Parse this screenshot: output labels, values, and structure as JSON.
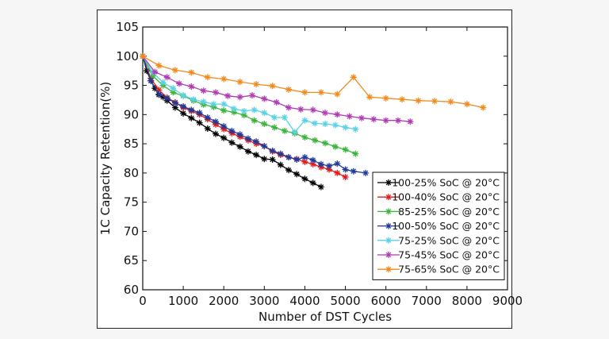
{
  "chart_data": {
    "type": "line",
    "title": "",
    "xlabel": "Number of DST Cycles",
    "ylabel": "1C Capacity Retention(%)",
    "xlim": [
      0,
      9000
    ],
    "ylim": [
      60,
      105
    ],
    "xticks": [
      0,
      1000,
      2000,
      3000,
      4000,
      5000,
      6000,
      7000,
      8000,
      9000
    ],
    "yticks": [
      60,
      65,
      70,
      75,
      80,
      85,
      90,
      95,
      100,
      105
    ],
    "grid": false,
    "legend_position": "bottom-right",
    "series": [
      {
        "name": "100-25% SoC @ 20°C",
        "color": "#000000",
        "x": [
          0,
          100,
          200,
          300,
          400,
          500,
          600,
          800,
          1000,
          1200,
          1400,
          1600,
          1800,
          2000,
          2200,
          2400,
          2600,
          2800,
          3000,
          3200,
          3400,
          3600,
          3800,
          4000,
          4200,
          4400
        ],
        "y": [
          100,
          97.5,
          95.8,
          94.5,
          93.4,
          93,
          92.4,
          91.2,
          90.2,
          89.4,
          88.6,
          87.6,
          86.7,
          86.0,
          85.2,
          84.5,
          83.7,
          83.1,
          82.4,
          82.3,
          81.4,
          80.5,
          79.8,
          79.0,
          78.3,
          77.6
        ]
      },
      {
        "name": "100-40% SoC @ 20°C",
        "color": "#e41a1c",
        "x": [
          0,
          200,
          400,
          600,
          800,
          1000,
          1200,
          1400,
          1600,
          1800,
          2000,
          2200,
          2400,
          2600,
          2800,
          3000,
          3200,
          3400,
          3600,
          3800,
          4000,
          4200,
          4400,
          4600,
          4800,
          5000
        ],
        "y": [
          100,
          96.2,
          94.2,
          92.9,
          92.1,
          91.2,
          90.6,
          90.0,
          89.2,
          88.3,
          87.5,
          86.8,
          86.2,
          85.6,
          85.0,
          84.6,
          83.7,
          83.1,
          82.7,
          82.4,
          81.9,
          81.5,
          81.0,
          80.6,
          80.0,
          79.3
        ]
      },
      {
        "name": "85-25% SoC @ 20°C",
        "color": "#3cb43c",
        "x": [
          0,
          250,
          500,
          750,
          1000,
          1250,
          1500,
          1750,
          2000,
          2250,
          2500,
          2750,
          3000,
          3250,
          3500,
          3750,
          4000,
          4250,
          4500,
          4750,
          5000,
          5250
        ],
        "y": [
          100,
          96.6,
          95.0,
          93.8,
          93.2,
          92.4,
          91.7,
          91.3,
          90.7,
          90.4,
          89.9,
          89.0,
          88.4,
          87.8,
          87.2,
          86.8,
          86.1,
          85.6,
          85.1,
          84.5,
          84.0,
          83.3
        ]
      },
      {
        "name": "100-50% SoC @ 20°C",
        "color": "#1f3a99",
        "x": [
          0,
          200,
          400,
          600,
          800,
          1000,
          1200,
          1400,
          1600,
          1800,
          2000,
          2200,
          2400,
          2600,
          2800,
          3000,
          3200,
          3400,
          3600,
          3800,
          4000,
          4200,
          4400,
          4600,
          4800,
          5000,
          5200,
          5500
        ],
        "y": [
          100,
          95.8,
          93.5,
          92.8,
          92.0,
          91.4,
          90.8,
          90.3,
          89.5,
          88.8,
          88.0,
          87.2,
          86.6,
          85.9,
          85.4,
          84.6,
          83.8,
          83.3,
          82.7,
          82.3,
          82.7,
          82.2,
          81.5,
          81.2,
          81.6,
          80.6,
          80.3,
          80.0
        ]
      },
      {
        "name": "75-25% SoC @ 20°C",
        "color": "#5ad2e6",
        "x": [
          0,
          250,
          500,
          750,
          1000,
          1250,
          1500,
          1750,
          2000,
          2250,
          2500,
          2750,
          3000,
          3250,
          3500,
          3750,
          4000,
          4250,
          4500,
          4750,
          5000,
          5250
        ],
        "y": [
          100,
          97.2,
          95.5,
          94.5,
          93.3,
          92.6,
          92.2,
          91.8,
          91.8,
          91.0,
          90.6,
          90.8,
          90.3,
          89.5,
          89.5,
          87.0,
          89.0,
          88.5,
          88.4,
          88.2,
          87.8,
          87.5
        ]
      },
      {
        "name": "75-45% SoC @ 20°C",
        "color": "#b03cb4",
        "x": [
          0,
          300,
          600,
          900,
          1200,
          1500,
          1800,
          2100,
          2400,
          2700,
          3000,
          3300,
          3600,
          3900,
          4200,
          4500,
          4800,
          5100,
          5400,
          5700,
          6000,
          6300,
          6600
        ],
        "y": [
          100,
          97.3,
          96.4,
          95.3,
          94.8,
          94.1,
          93.8,
          93.2,
          93.0,
          93.3,
          92.7,
          92.1,
          91.2,
          90.9,
          90.8,
          90.3,
          90.0,
          89.7,
          89.4,
          89.2,
          89.0,
          89.0,
          88.8
        ]
      },
      {
        "name": "75-65% SoC @ 20°C",
        "color": "#f28a1e",
        "x": [
          0,
          400,
          800,
          1200,
          1600,
          2000,
          2400,
          2800,
          3200,
          3600,
          4000,
          4400,
          4800,
          5200,
          5600,
          6000,
          6400,
          6800,
          7200,
          7600,
          8000,
          8400
        ],
        "y": [
          100,
          98.4,
          97.6,
          97.2,
          96.4,
          96.1,
          95.6,
          95.2,
          94.9,
          94.3,
          93.8,
          93.8,
          93.5,
          96.4,
          93.0,
          92.8,
          92.6,
          92.4,
          92.3,
          92.2,
          91.8,
          91.2
        ]
      }
    ]
  }
}
